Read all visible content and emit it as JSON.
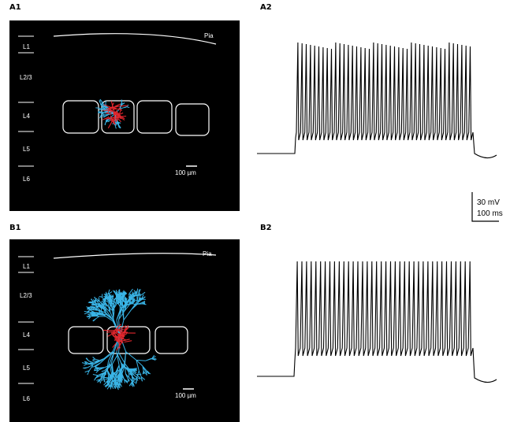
{
  "panels": {
    "a1": {
      "label": "A1",
      "pia": "Pia",
      "layers": [
        "L1",
        "L2/3",
        "L4",
        "L5",
        "L6"
      ],
      "scale_label": "100 µm",
      "neuron_type": "compact-dendrites",
      "colors": {
        "dendrite": "#39b4e6",
        "axon": "#e1262d",
        "outline": "#ffffff",
        "background": "#000000"
      }
    },
    "a2": {
      "label": "A2",
      "spike_count": 42
    },
    "b1": {
      "label": "B1",
      "pia": "Pia",
      "layers": [
        "L1",
        "L2/3",
        "L4",
        "L5",
        "L6"
      ],
      "scale_label": "100 µm",
      "neuron_type": "extended-dendrites"
    },
    "b2": {
      "label": "B2",
      "spike_count": 38
    }
  },
  "scalebar": {
    "voltage": "30 mV",
    "time": "100 ms"
  }
}
